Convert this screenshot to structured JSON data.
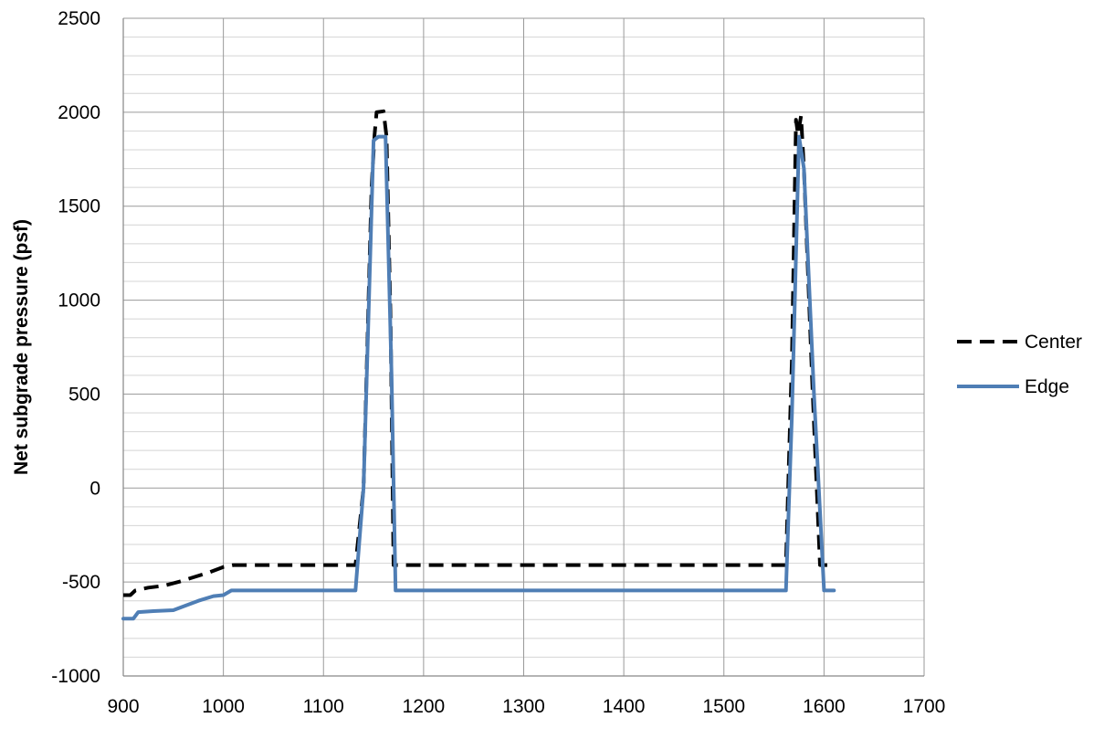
{
  "chart_data": {
    "type": "line",
    "title": "",
    "xlabel": "",
    "ylabel": "Net subgrade pressure (psf)",
    "xlim": [
      900,
      1700
    ],
    "ylim": [
      -1000,
      2500
    ],
    "x_ticks": [
      900,
      1000,
      1100,
      1200,
      1300,
      1400,
      1500,
      1600,
      1700
    ],
    "y_ticks": [
      -1000,
      -500,
      0,
      500,
      1000,
      1500,
      2000,
      2500
    ],
    "x_tick_labels": [
      "900",
      "1000",
      "1100",
      "1200",
      "1300",
      "1400",
      "1500",
      "1600",
      "1700"
    ],
    "y_tick_labels": [
      "-1000",
      "-500",
      "0",
      "500",
      "1000",
      "1500",
      "2000",
      "2500"
    ],
    "grid": true,
    "legend_position": "right",
    "series": [
      {
        "name": "Center",
        "color": "#000000",
        "dash": "dashed",
        "points": [
          [
            900,
            -570
          ],
          [
            907,
            -570
          ],
          [
            912,
            -545
          ],
          [
            925,
            -530
          ],
          [
            940,
            -520
          ],
          [
            955,
            -500
          ],
          [
            970,
            -475
          ],
          [
            985,
            -450
          ],
          [
            1000,
            -420
          ],
          [
            1010,
            -410
          ],
          [
            1132,
            -410
          ],
          [
            1140,
            0
          ],
          [
            1148,
            1600
          ],
          [
            1151,
            1880
          ],
          [
            1153,
            2000
          ],
          [
            1160,
            2005
          ],
          [
            1163,
            1870
          ],
          [
            1167,
            900
          ],
          [
            1170,
            -410
          ],
          [
            1562,
            -410
          ],
          [
            1568,
            700
          ],
          [
            1572,
            1960
          ],
          [
            1574,
            1880
          ],
          [
            1577,
            1980
          ],
          [
            1580,
            1700
          ],
          [
            1588,
            600
          ],
          [
            1596,
            -410
          ],
          [
            1610,
            -410
          ]
        ]
      },
      {
        "name": "Edge",
        "color": "#4f7eb5",
        "dash": "solid",
        "points": [
          [
            900,
            -695
          ],
          [
            910,
            -695
          ],
          [
            915,
            -660
          ],
          [
            930,
            -655
          ],
          [
            950,
            -650
          ],
          [
            960,
            -630
          ],
          [
            975,
            -600
          ],
          [
            990,
            -575
          ],
          [
            1000,
            -570
          ],
          [
            1008,
            -545
          ],
          [
            1132,
            -545
          ],
          [
            1140,
            0
          ],
          [
            1150,
            1850
          ],
          [
            1155,
            1870
          ],
          [
            1162,
            1870
          ],
          [
            1168,
            600
          ],
          [
            1172,
            -545
          ],
          [
            1562,
            -545
          ],
          [
            1568,
            400
          ],
          [
            1575,
            1870
          ],
          [
            1580,
            1700
          ],
          [
            1590,
            500
          ],
          [
            1600,
            -545
          ],
          [
            1610,
            -545
          ]
        ]
      }
    ]
  }
}
